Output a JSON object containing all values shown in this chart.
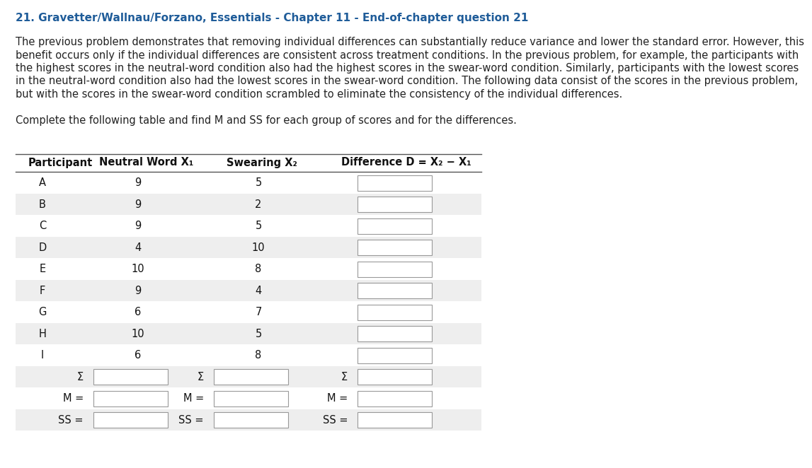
{
  "title": "21. Gravetter/Wallnau/Forzano, Essentials - Chapter 11 - End-of-chapter question 21",
  "title_color": "#1F5C99",
  "title_fontsize": 11.0,
  "body_text_lines": [
    "The previous problem demonstrates that removing individual differences can substantially reduce variance and lower the standard error. However, this",
    "benefit occurs only if the individual differences are consistent across treatment conditions. In the previous problem, for example, the participants with",
    "the highest scores in the neutral-word condition also had the highest scores in the swear-word condition. Similarly, participants with the lowest scores",
    "in the neutral-word condition also had the lowest scores in the swear-word condition. The following data consist of the scores in the previous problem,",
    "but with the scores in the swear-word condition scrambled to eliminate the consistency of the individual differences."
  ],
  "instruction_text": "Complete the following table and find M and SS for each group of scores and for the differences.",
  "body_fontsize": 10.5,
  "participants": [
    "A",
    "B",
    "C",
    "D",
    "E",
    "F",
    "G",
    "H",
    "I"
  ],
  "neutral_word": [
    9,
    9,
    9,
    4,
    10,
    9,
    6,
    10,
    6
  ],
  "swearing": [
    5,
    2,
    5,
    10,
    8,
    4,
    7,
    5,
    8
  ],
  "row_bg_light": "#FFFFFF",
  "row_bg_dark": "#EEEEEE",
  "table_fontsize": 10.5,
  "background_color": "#FFFFFF"
}
